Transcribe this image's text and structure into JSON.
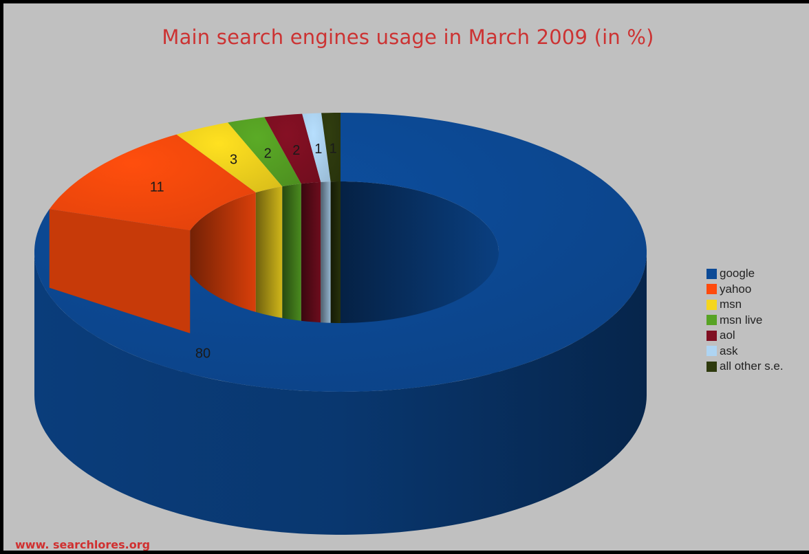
{
  "chart_data": {
    "type": "pie",
    "title": "Main search engines usage in March 2009 (in %)",
    "categories": [
      "google",
      "yahoo",
      "msn",
      "msn live",
      "aol",
      "ask",
      "all other s.e."
    ],
    "values": [
      80,
      11,
      3,
      2,
      2,
      1,
      1
    ],
    "colors": [
      "#0c4a96",
      "#ff4a0c",
      "#f5d61e",
      "#57a324",
      "#800f22",
      "#aed4f2",
      "#2e3a0e"
    ],
    "legend_position": "right",
    "donut": true,
    "three_d": true
  },
  "background_color": "#c0c0c0",
  "title_color": "#cc3333",
  "source_text": "www. searchlores.org"
}
